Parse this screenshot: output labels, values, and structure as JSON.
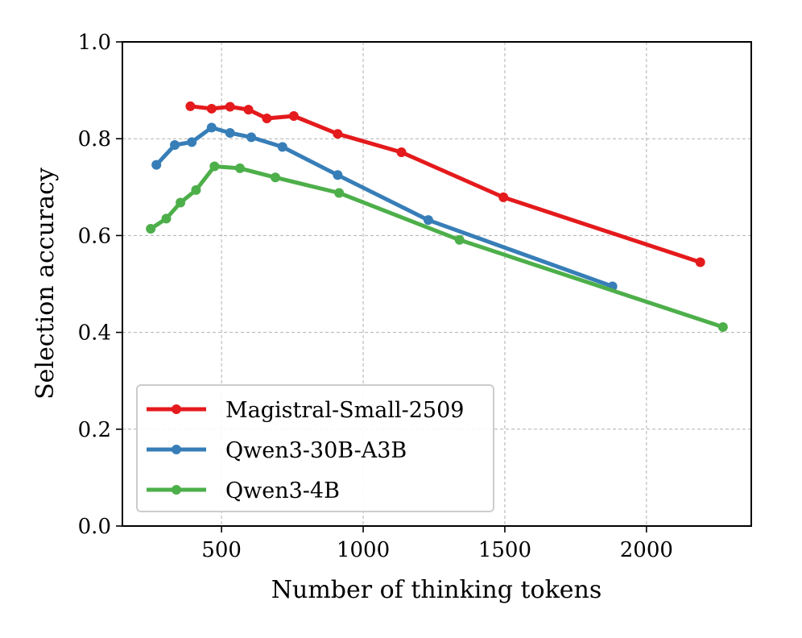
{
  "chart_data": {
    "type": "line",
    "title": "",
    "xlabel": "Number of thinking tokens",
    "ylabel": "Selection accuracy",
    "xlim": [
      150,
      2370
    ],
    "ylim": [
      0.0,
      1.0
    ],
    "x_ticks": [
      500,
      1000,
      1500,
      2000
    ],
    "x_tick_labels": [
      "500",
      "1000",
      "1500",
      "2000"
    ],
    "y_ticks": [
      0.0,
      0.2,
      0.4,
      0.6,
      0.8,
      1.0
    ],
    "y_tick_labels": [
      "0.0",
      "0.2",
      "0.4",
      "0.6",
      "0.8",
      "1.0"
    ],
    "grid": true,
    "legend_position": "lower-left",
    "series": [
      {
        "name": "Magistral-Small-2509",
        "color": "#e41a1c",
        "points": [
          [
            390,
            0.867
          ],
          [
            465,
            0.862
          ],
          [
            530,
            0.866
          ],
          [
            595,
            0.86
          ],
          [
            660,
            0.842
          ],
          [
            755,
            0.847
          ],
          [
            910,
            0.81
          ],
          [
            1135,
            0.772
          ],
          [
            1495,
            0.679
          ],
          [
            2190,
            0.545
          ]
        ]
      },
      {
        "name": "Qwen3-30B-A3B",
        "color": "#377eb8",
        "points": [
          [
            270,
            0.746
          ],
          [
            335,
            0.787
          ],
          [
            395,
            0.793
          ],
          [
            465,
            0.823
          ],
          [
            530,
            0.812
          ],
          [
            605,
            0.803
          ],
          [
            715,
            0.783
          ],
          [
            910,
            0.725
          ],
          [
            1230,
            0.632
          ],
          [
            1880,
            0.495
          ]
        ]
      },
      {
        "name": "Qwen3-4B",
        "color": "#4daf4a",
        "points": [
          [
            250,
            0.614
          ],
          [
            305,
            0.635
          ],
          [
            355,
            0.668
          ],
          [
            410,
            0.694
          ],
          [
            475,
            0.743
          ],
          [
            565,
            0.739
          ],
          [
            690,
            0.72
          ],
          [
            915,
            0.688
          ],
          [
            1340,
            0.591
          ],
          [
            2270,
            0.411
          ]
        ]
      }
    ]
  }
}
